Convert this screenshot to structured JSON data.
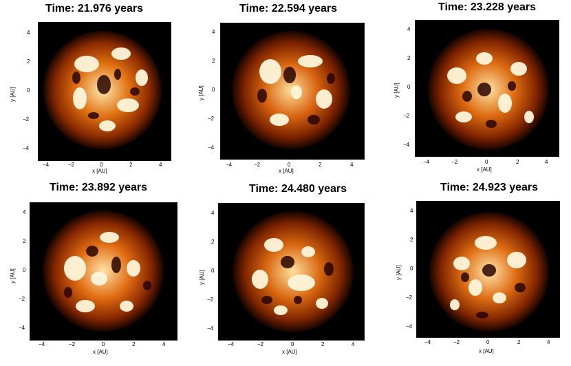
{
  "panels": [
    {
      "title": "Time: 21.976 years",
      "xlabel": "x [AU]",
      "ylabel": "y [AU]",
      "xticks": [
        "−4",
        "−2",
        "0",
        "2",
        "4"
      ],
      "yticks": [
        "4",
        "2",
        "0",
        "−2",
        "−4"
      ]
    },
    {
      "title": "Time: 22.594 years",
      "xlabel": "x [AU]",
      "ylabel": "y [AU]",
      "xticks": [
        "−4",
        "−2",
        "0",
        "2",
        "4"
      ],
      "yticks": [
        "4",
        "2",
        "0",
        "−2",
        "−4"
      ]
    },
    {
      "title": "Time: 23.228 years",
      "xlabel": "x [AU]",
      "ylabel": "y [AU]",
      "xticks": [
        "−4",
        "−2",
        "0",
        "2",
        "4"
      ],
      "yticks": [
        "4",
        "2",
        "0",
        "−2",
        "−4"
      ]
    },
    {
      "title": "Time: 23.892 years",
      "xlabel": "x [AU]",
      "ylabel": "y [AU]",
      "xticks": [
        "−4",
        "−2",
        "0",
        "2",
        "4"
      ],
      "yticks": [
        "4",
        "2",
        "0",
        "−2",
        "−4"
      ]
    },
    {
      "title": "Time: 24.480 years",
      "xlabel": "x [AU]",
      "ylabel": "y [AU]",
      "xticks": [
        "−4",
        "−2",
        "0",
        "2",
        "4"
      ],
      "yticks": [
        "4",
        "2",
        "0",
        "−2",
        "−4"
      ]
    },
    {
      "title": "Time: 24.923 years",
      "xlabel": "x [AU]",
      "ylabel": "y [AU]",
      "xticks": [
        "−4",
        "−2",
        "0",
        "2",
        "4"
      ],
      "yticks": [
        "4",
        "2",
        "0",
        "−2",
        "−4"
      ]
    }
  ],
  "colors": {
    "background": "#000000",
    "disk_dark": "#3a0a00",
    "disk_mid": "#c8500a",
    "disk_bright": "#fff3d6"
  }
}
